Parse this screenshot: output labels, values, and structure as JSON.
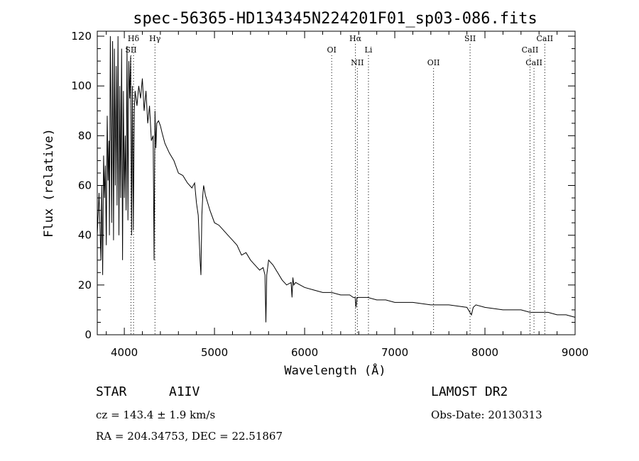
{
  "chart_data": {
    "type": "line",
    "title": "spec-56365-HD134345N224201F01_sp03-086.fits",
    "xlabel": "Wavelength (Å)",
    "ylabel": "Flux (relative)",
    "xlim": [
      3700,
      9000
    ],
    "ylim": [
      0,
      122
    ],
    "x_ticks": [
      4000,
      5000,
      6000,
      7000,
      8000,
      9000
    ],
    "y_ticks": [
      0,
      20,
      40,
      60,
      80,
      100,
      120
    ],
    "grid": false,
    "series": [
      {
        "x": [
          3700,
          3720,
          3740,
          3750,
          3760,
          3770,
          3780,
          3790,
          3800,
          3810,
          3820,
          3830,
          3835,
          3845,
          3850,
          3860,
          3870,
          3880,
          3890,
          3900,
          3910,
          3920,
          3930,
          3940,
          3950,
          3960,
          3970,
          3980,
          3990,
          4000,
          4010,
          4020,
          4030,
          4040,
          4050,
          4060,
          4070,
          4080,
          4090,
          4100,
          4110,
          4120,
          4140,
          4160,
          4180,
          4200,
          4220,
          4240,
          4260,
          4280,
          4300,
          4320,
          4330,
          4340,
          4350,
          4360,
          4380,
          4400,
          4420,
          4450,
          4500,
          4550,
          4600,
          4650,
          4700,
          4750,
          4780,
          4800,
          4820,
          4840,
          4850,
          4860,
          4870,
          4880,
          4900,
          4950,
          5000,
          5050,
          5100,
          5150,
          5200,
          5250,
          5300,
          5350,
          5400,
          5450,
          5500,
          5540,
          5560,
          5570,
          5580,
          5600,
          5650,
          5700,
          5750,
          5800,
          5850,
          5860,
          5870,
          5880,
          5900,
          5950,
          6000,
          6100,
          6200,
          6300,
          6400,
          6500,
          6540,
          6560,
          6570,
          6580,
          6600,
          6700,
          6800,
          6900,
          7000,
          7200,
          7400,
          7600,
          7800,
          7850,
          7870,
          7900,
          8000,
          8200,
          8400,
          8500,
          8600,
          8700,
          8800,
          8900,
          9000
        ],
        "y": [
          40,
          57,
          30,
          60,
          24,
          72,
          55,
          68,
          36,
          88,
          62,
          78,
          40,
          120,
          100,
          45,
          118,
          38,
          115,
          60,
          108,
          52,
          120,
          40,
          100,
          55,
          115,
          30,
          98,
          55,
          80,
          50,
          116,
          46,
          110,
          95,
          112,
          40,
          100,
          42,
          90,
          98,
          92,
          100,
          95,
          103,
          90,
          98,
          85,
          92,
          78,
          80,
          30,
          90,
          75,
          85,
          86,
          84,
          81,
          77,
          73,
          70,
          65,
          64,
          61,
          59,
          61,
          53,
          48,
          30,
          24,
          48,
          56,
          60,
          56,
          50,
          45,
          44,
          42,
          40,
          38,
          36,
          32,
          33,
          30,
          28,
          26,
          27,
          24,
          5,
          24,
          30,
          28,
          25,
          22,
          20,
          21,
          15,
          23,
          20,
          21,
          20,
          19,
          18,
          17,
          17,
          16,
          16,
          15,
          15,
          11,
          15,
          15,
          15,
          14,
          14,
          13,
          13,
          12,
          12,
          11,
          8,
          11,
          12,
          11,
          10,
          10,
          9,
          9,
          9,
          8,
          8,
          7
        ]
      }
    ],
    "line_markers": [
      {
        "name": "Hδ",
        "wavelength": 4102
      },
      {
        "name": "SII",
        "wavelength": 4074
      },
      {
        "name": "Hγ",
        "wavelength": 4340
      },
      {
        "name": "OI",
        "wavelength": 6300
      },
      {
        "name": "Hα",
        "wavelength": 6563
      },
      {
        "name": "NII",
        "wavelength": 6585
      },
      {
        "name": "Li",
        "wavelength": 6708
      },
      {
        "name": "OII",
        "wavelength": 7430
      },
      {
        "name": "SII",
        "wavelength": 7835
      },
      {
        "name": "CaII",
        "wavelength": 8500
      },
      {
        "name": "CaII",
        "wavelength": 8544
      },
      {
        "name": "CaII",
        "wavelength": 8664
      }
    ]
  },
  "info": {
    "object_class": "STAR",
    "subclass": "A1IV",
    "survey": "LAMOST DR2",
    "cz": "cz = 143.4 ± 1.9 km/s",
    "obs_date": "Obs-Date: 20130313",
    "coords": "RA = 204.34753, DEC =  22.51867"
  }
}
